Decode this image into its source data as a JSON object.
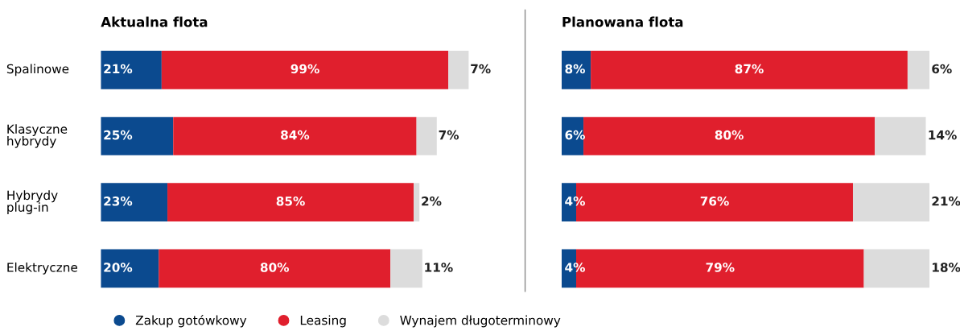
{
  "chart_data": [
    {
      "type": "bar",
      "orientation": "horizontal",
      "stacked": true,
      "title": "Aktualna flota",
      "categories": [
        "Spalinowe",
        "Klasyczne hybrydy",
        "Hybrydy plug-in",
        "Elektryczne"
      ],
      "legend": "bottom",
      "series": [
        {
          "name": "Zakup gotówkowy",
          "color": "#0b4a8f",
          "values": [
            21,
            25,
            23,
            20
          ],
          "value_labels": [
            "21%",
            "25%",
            "23%",
            "20%"
          ]
        },
        {
          "name": "Leasing",
          "color": "#e01f2d",
          "values": [
            99,
            84,
            85,
            80
          ],
          "value_labels": [
            "99%",
            "84%",
            "85%",
            "80%"
          ]
        },
        {
          "name": "Wynajem długoterminowy",
          "color": "#dcdcdc",
          "values": [
            7,
            7,
            2,
            11
          ],
          "value_labels": [
            "7%",
            "7%",
            "2%",
            "11%"
          ]
        }
      ]
    },
    {
      "type": "bar",
      "orientation": "horizontal",
      "stacked": true,
      "title": "Planowana flota",
      "categories": [
        null,
        null,
        null,
        null
      ],
      "series": [
        {
          "color": "#0b4a8f",
          "values": [
            8,
            6,
            4,
            4
          ],
          "value_labels": [
            "8%",
            "6%",
            "4%",
            "4%"
          ]
        },
        {
          "color": "#e01f2d",
          "values": [
            87,
            80,
            76,
            79
          ],
          "value_labels": [
            "87%",
            "80%",
            "76%",
            "79%"
          ]
        },
        {
          "color": "#dcdcdc",
          "values": [
            6,
            14,
            21,
            18
          ],
          "value_labels": [
            "6%",
            "14%",
            "21%",
            "18%"
          ]
        }
      ]
    }
  ]
}
